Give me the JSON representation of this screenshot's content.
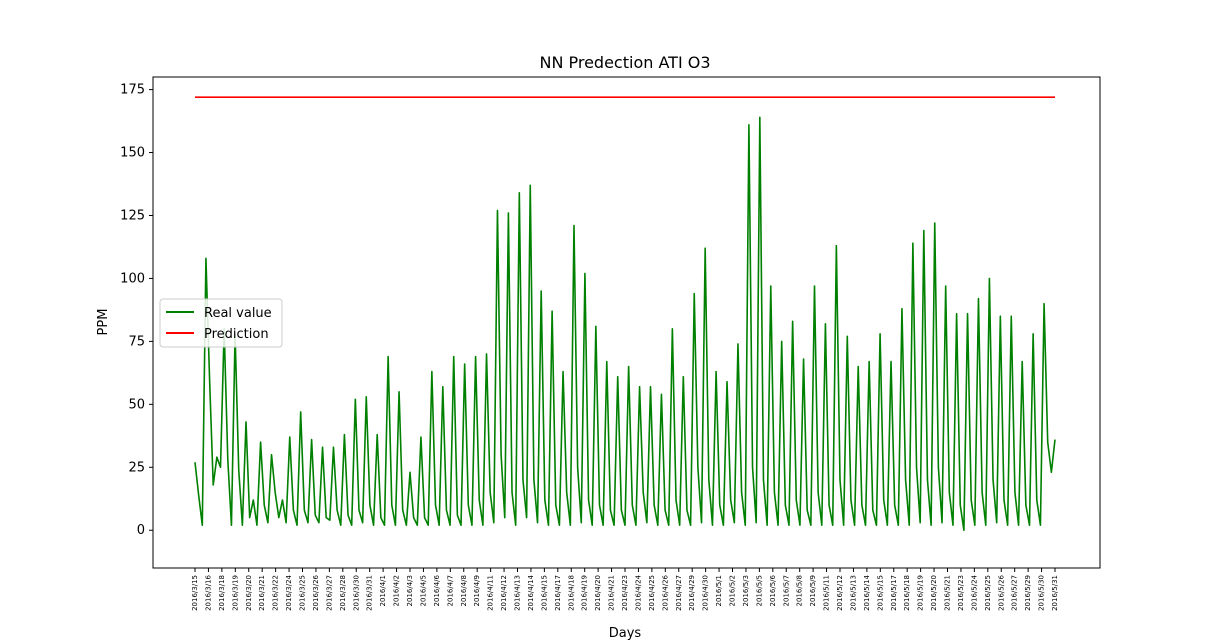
{
  "chart_data": {
    "type": "line",
    "title": "NN Predection ATI O3",
    "xlabel": "Days",
    "ylabel": "PPM",
    "ylim": [
      -15,
      180
    ],
    "yticks": [
      0,
      25,
      50,
      75,
      100,
      125,
      150,
      175
    ],
    "grid": false,
    "legend_position": "center-left",
    "x_tick_labels": [
      "2016/3/15",
      "2016/3/16",
      "2016/3/18",
      "2016/3/19",
      "2016/3/20",
      "2016/3/21",
      "2016/3/22",
      "2016/3/24",
      "2016/3/25",
      "2016/3/26",
      "2016/3/27",
      "2016/3/28",
      "2016/3/30",
      "2016/3/31",
      "2016/4/1",
      "2016/4/2",
      "2016/4/3",
      "2016/4/5",
      "2016/4/6",
      "2016/4/7",
      "2016/4/8",
      "2016/4/9",
      "2016/4/11",
      "2016/4/12",
      "2016/4/13",
      "2016/4/14",
      "2016/4/15",
      "2016/4/17",
      "2016/4/18",
      "2016/4/19",
      "2016/4/20",
      "2016/4/21",
      "2016/4/23",
      "2016/4/24",
      "2016/4/25",
      "2016/4/26",
      "2016/4/27",
      "2016/4/29",
      "2016/4/30",
      "2016/5/1",
      "2016/5/2",
      "2016/5/3",
      "2016/5/5",
      "2016/5/6",
      "2016/5/7",
      "2016/5/8",
      "2016/5/9",
      "2016/5/11",
      "2016/5/12",
      "2016/5/13",
      "2016/5/14",
      "2016/5/15",
      "2016/5/17",
      "2016/5/18",
      "2016/5/19",
      "2016/5/20",
      "2016/5/21",
      "2016/5/23",
      "2016/5/24",
      "2016/5/25",
      "2016/5/26",
      "2016/5/27",
      "2016/5/29",
      "2016/5/30",
      "2016/5/31"
    ],
    "series": [
      {
        "name": "Real value",
        "color": "#008000",
        "values": [
          27,
          14,
          2,
          108,
          60,
          18,
          29,
          25,
          80,
          28,
          2,
          78,
          24,
          2,
          43,
          5,
          12,
          2,
          35,
          10,
          3,
          30,
          15,
          5,
          12,
          3,
          37,
          8,
          2,
          47,
          8,
          3,
          36,
          6,
          3,
          33,
          5,
          4,
          33,
          8,
          2,
          38,
          6,
          2,
          52,
          8,
          3,
          53,
          10,
          2,
          38,
          5,
          2,
          69,
          10,
          2,
          55,
          8,
          2,
          23,
          5,
          2,
          37,
          5,
          2,
          63,
          10,
          2,
          57,
          8,
          2,
          69,
          6,
          2,
          66,
          10,
          2,
          69,
          12,
          2,
          70,
          15,
          3,
          127,
          30,
          5,
          126,
          15,
          2,
          134,
          20,
          5,
          137,
          20,
          3,
          95,
          12,
          2,
          87,
          10,
          2,
          63,
          15,
          2,
          121,
          25,
          3,
          102,
          12,
          2,
          81,
          10,
          2,
          67,
          8,
          2,
          61,
          8,
          2,
          65,
          10,
          2,
          57,
          15,
          3,
          57,
          10,
          2,
          54,
          8,
          2,
          80,
          12,
          2,
          61,
          8,
          2,
          94,
          25,
          3,
          112,
          20,
          2,
          63,
          10,
          2,
          59,
          12,
          3,
          74,
          15,
          2,
          161,
          25,
          3,
          164,
          20,
          2,
          97,
          15,
          2,
          75,
          10,
          2,
          83,
          12,
          2,
          68,
          8,
          2,
          97,
          15,
          2,
          82,
          10,
          2,
          113,
          20,
          2,
          77,
          12,
          2,
          65,
          10,
          2,
          67,
          8,
          2,
          78,
          12,
          2,
          67,
          10,
          2,
          88,
          20,
          2,
          114,
          25,
          3,
          119,
          20,
          2,
          122,
          25,
          3,
          97,
          15,
          2,
          86,
          10,
          0,
          86,
          12,
          2,
          92,
          15,
          2,
          100,
          20,
          3,
          85,
          12,
          2,
          85,
          15,
          2,
          67,
          10,
          2,
          78,
          12,
          2,
          90,
          35,
          23,
          36
        ]
      },
      {
        "name": "Prediction",
        "color": "#ff0000",
        "constant": 172
      }
    ]
  }
}
